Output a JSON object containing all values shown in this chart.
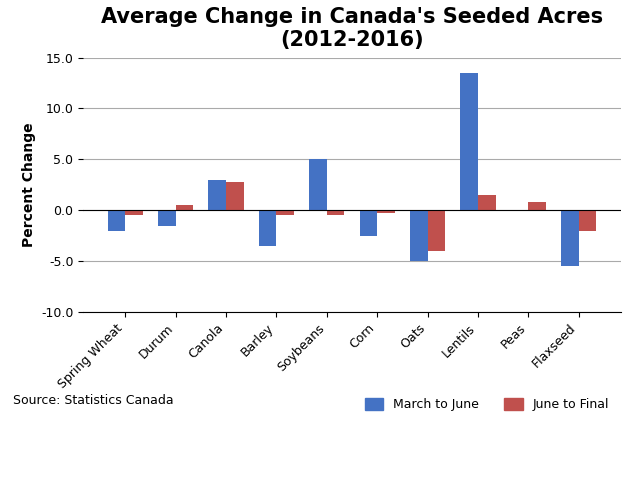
{
  "categories": [
    "Spring Wheat",
    "Durum",
    "Canola",
    "Barley",
    "Soybeans",
    "Corn",
    "Oats",
    "Lentils",
    "Peas",
    "Flaxseed"
  ],
  "march_to_june": [
    -2.0,
    -1.5,
    3.0,
    -3.5,
    5.0,
    -2.5,
    -5.0,
    13.5,
    0.0,
    -5.5
  ],
  "june_to_final": [
    -0.5,
    0.5,
    2.8,
    -0.5,
    -0.5,
    -0.3,
    -4.0,
    1.5,
    0.8,
    -2.0
  ],
  "bar_color_blue": "#4472C4",
  "bar_color_red": "#C0504D",
  "title": "Average Change in Canada's Seeded Acres\n(2012-2016)",
  "ylabel": "Percent Change",
  "ylim": [
    -10.0,
    15.0
  ],
  "yticks": [
    -10.0,
    -5.0,
    0.0,
    5.0,
    10.0,
    15.0
  ],
  "legend_labels": [
    "March to June",
    "June to Final"
  ],
  "source_text": "Source: Statistics Canada",
  "background_color": "#FFFFFF",
  "title_fontsize": 15,
  "bar_width": 0.35
}
